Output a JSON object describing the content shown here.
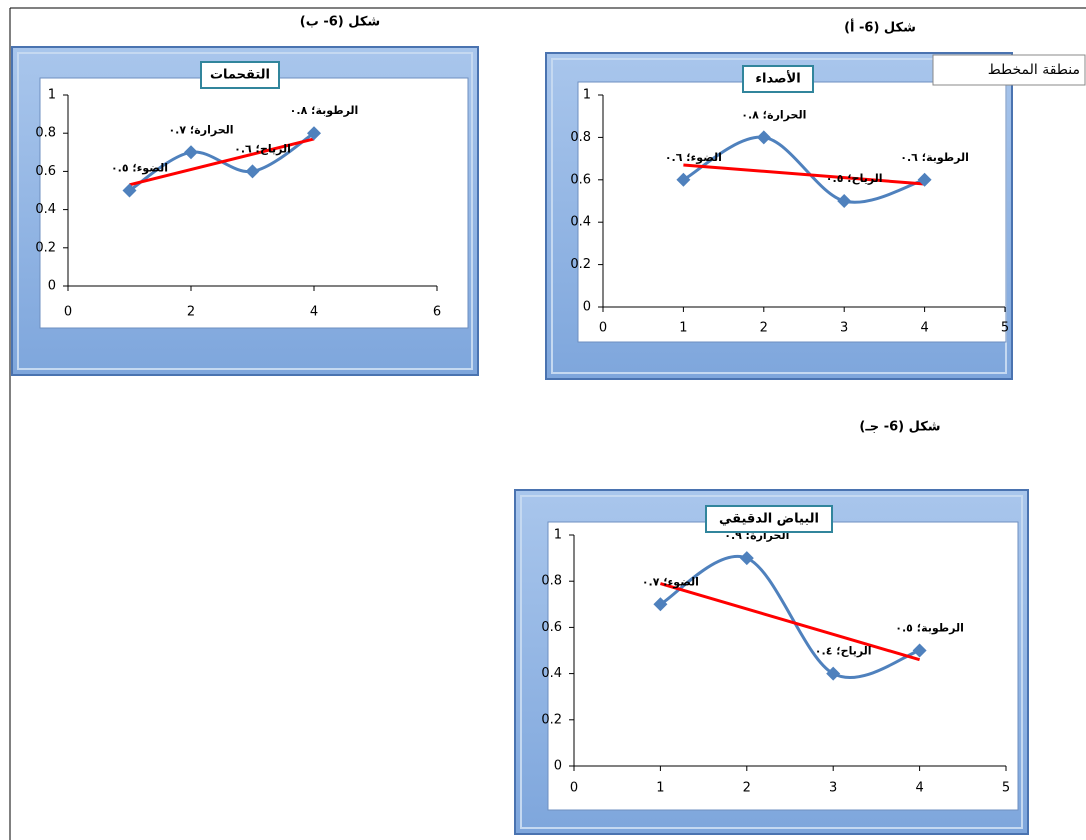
{
  "tooltip": "منطقة المخطط",
  "chart_data": [
    {
      "type": "line",
      "caption": "شكل (6- أ)",
      "title": "الأصداء",
      "x": [
        1,
        2,
        3,
        4
      ],
      "values": [
        0.6,
        0.8,
        0.5,
        0.6
      ],
      "value_labels": [
        "الضوء؛ ٠.٦",
        "الحرارة؛ ٠.٨",
        "الرياح؛ ٠.٥",
        "الرطوبة؛ ٠.٦"
      ],
      "color": "#4f81bd",
      "trendline_color": "#ff0000",
      "trendline": "linear",
      "smooth": true,
      "xlim": [
        0,
        5
      ],
      "xticks": [
        0,
        1,
        2,
        3,
        4,
        5
      ],
      "ylim": [
        0,
        1
      ],
      "yticks": [
        0,
        0.2,
        0.4,
        0.6,
        0.8,
        1
      ]
    },
    {
      "type": "line",
      "caption": "شكل (6- ب)",
      "title": "التقحمات",
      "x": [
        1,
        2,
        3,
        4
      ],
      "values": [
        0.5,
        0.7,
        0.6,
        0.8
      ],
      "value_labels": [
        "الضوء؛ ٠.٥",
        "الحرارة؛ ٠.٧",
        "الرياح؛ ٠.٦",
        "الرطوبة؛ ٠.٨"
      ],
      "color": "#4f81bd",
      "trendline_color": "#ff0000",
      "trendline": "linear",
      "smooth": true,
      "xlim": [
        0,
        6
      ],
      "xticks": [
        0,
        2,
        4,
        6
      ],
      "ylim": [
        0,
        1
      ],
      "yticks": [
        0,
        0.2,
        0.4,
        0.6,
        0.8,
        1
      ]
    },
    {
      "type": "line",
      "caption": "شكل (6- جـ)",
      "title": "البياض الدقيقي",
      "x": [
        1,
        2,
        3,
        4
      ],
      "values": [
        0.7,
        0.9,
        0.4,
        0.5
      ],
      "value_labels": [
        "الضوء؛ ٠.٧",
        "الحرارة؛ ٠.٩",
        "الرياح؛ ٠.٤",
        "الرطوبة؛ ٠.٥"
      ],
      "color": "#4f81bd",
      "trendline_color": "#ff0000",
      "trendline": "linear",
      "smooth": true,
      "xlim": [
        0,
        5
      ],
      "xticks": [
        0,
        1,
        2,
        3,
        4,
        5
      ],
      "ylim": [
        0,
        1
      ],
      "yticks": [
        0,
        0.2,
        0.4,
        0.6,
        0.8,
        1
      ]
    }
  ]
}
